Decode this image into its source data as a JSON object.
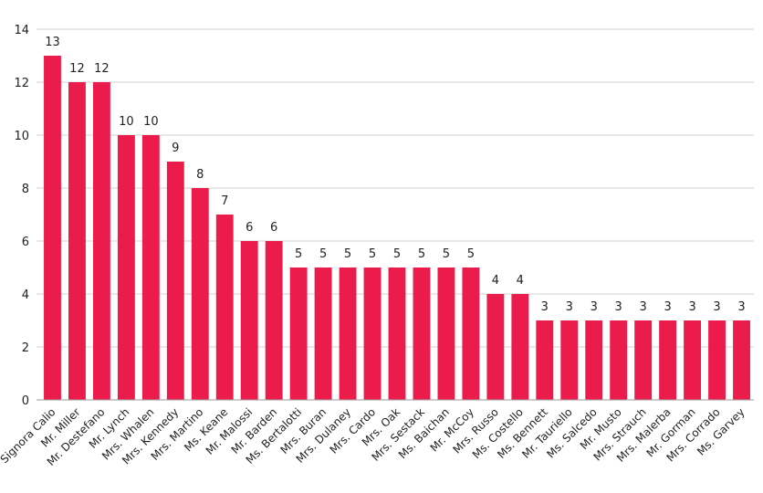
{
  "chart_data": {
    "type": "bar",
    "title": "",
    "xlabel": "",
    "ylabel": "",
    "ylim": [
      0,
      14
    ],
    "yticks": [
      0,
      2,
      4,
      6,
      8,
      10,
      12,
      14
    ],
    "grid": true,
    "bar_color": "#eb1c4c",
    "categories": [
      "Signora Calio",
      "Mr. Miller",
      "Mr. Destefano",
      "Mr. Lynch",
      "Mrs. Whalen",
      "Mrs. Kennedy",
      "Mrs. Martino",
      "Ms. Keane",
      "Mr. Malossi",
      "Mr. Barden",
      "Ms. Bertalotti",
      "Mrs. Buran",
      "Mrs. Dulaney",
      "Mrs. Cardo",
      "Mrs. Oak",
      "Mrs. Sestack",
      "Ms. Baichan",
      "Mr. McCoy",
      "Mrs. Russo",
      "Ms. Costello",
      "Ms. Bennett",
      "Mr. Tauriello",
      "Ms. Salcedo",
      "Mr. Musto",
      "Mrs. Strauch",
      "Mrs. Malerba",
      "Mr. Gorman",
      "Mrs. Corrado",
      "Ms. Garvey"
    ],
    "values": [
      13,
      12,
      12,
      10,
      10,
      9,
      8,
      7,
      6,
      6,
      5,
      5,
      5,
      5,
      5,
      5,
      5,
      5,
      4,
      4,
      3,
      3,
      3,
      3,
      3,
      3,
      3,
      3,
      3
    ]
  }
}
